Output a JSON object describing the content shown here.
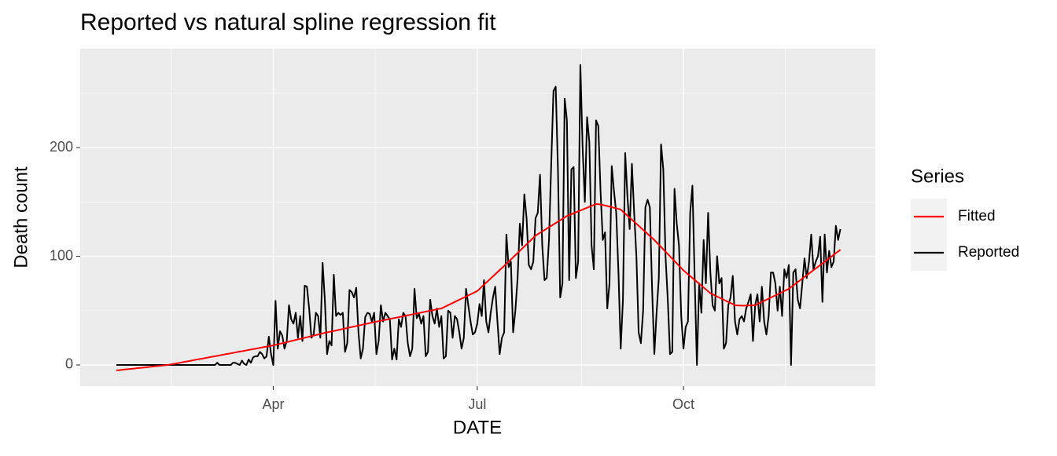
{
  "chart_data": {
    "type": "line",
    "title": "Reported vs natural spline regression fit",
    "x_label": "DATE",
    "y_label": "Death count",
    "legend_title": "Series",
    "legend_position": "right",
    "grid": true,
    "ylim": [
      -19.5,
      291
    ],
    "yticks": [
      0,
      100,
      200
    ],
    "categories": [
      null,
      null,
      null,
      null,
      null,
      null,
      null,
      null,
      null,
      null,
      null,
      null,
      null,
      null,
      null,
      null,
      null,
      null,
      null,
      null,
      null,
      null,
      null,
      null,
      null,
      null,
      null,
      null,
      null,
      null,
      null,
      null,
      null,
      null,
      null,
      null,
      null,
      null,
      null,
      null,
      null,
      null,
      null,
      null,
      null,
      null,
      null,
      null,
      null,
      null,
      null,
      null,
      null,
      null,
      null,
      null,
      null,
      null,
      null,
      null,
      null,
      null,
      null,
      null,
      null,
      null,
      null,
      null,
      null,
      null,
      "Apr",
      null,
      null,
      null,
      null,
      null,
      null,
      null,
      null,
      null,
      null,
      null,
      null,
      null,
      null,
      null,
      null,
      null,
      null,
      null,
      null,
      null,
      null,
      null,
      null,
      null,
      null,
      null,
      null,
      null,
      null,
      null,
      null,
      null,
      null,
      null,
      null,
      null,
      null,
      null,
      null,
      null,
      null,
      null,
      null,
      null,
      null,
      null,
      null,
      null,
      null,
      null,
      null,
      null,
      null,
      null,
      null,
      null,
      null,
      null,
      null,
      null,
      null,
      null,
      null,
      null,
      null,
      null,
      null,
      null,
      null,
      null,
      null,
      null,
      null,
      null,
      null,
      null,
      null,
      null,
      null,
      null,
      null,
      null,
      null,
      null,
      null,
      null,
      null,
      null,
      null,
      "Jul",
      null,
      null,
      null,
      null,
      null,
      null,
      null,
      null,
      null,
      null,
      null,
      null,
      null,
      null,
      null,
      null,
      null,
      null,
      null,
      null,
      null,
      null,
      null,
      null,
      null,
      null,
      null,
      null,
      null,
      null,
      null,
      null,
      null,
      null,
      null,
      null,
      null,
      null,
      null,
      null,
      null,
      null,
      null,
      null,
      null,
      null,
      null,
      null,
      null,
      null,
      null,
      null,
      null,
      null,
      null,
      null,
      null,
      null,
      null,
      null,
      null,
      null,
      null,
      null,
      null,
      null,
      null,
      null,
      null,
      null,
      null,
      null,
      null,
      null,
      null,
      null,
      null,
      null,
      null,
      null,
      null,
      null,
      null,
      null,
      null,
      null,
      null,
      null,
      null,
      null,
      null,
      "Oct",
      null,
      null,
      null,
      null,
      null,
      null,
      null,
      null,
      null,
      null,
      null,
      null,
      null,
      null,
      null,
      null,
      null,
      null,
      null,
      null,
      null,
      null,
      null,
      null,
      null,
      null,
      null,
      null,
      null,
      null,
      null,
      null,
      null,
      null,
      null,
      null,
      null,
      null,
      null,
      null,
      null,
      null,
      null,
      null,
      null,
      null,
      null,
      null,
      null,
      null,
      null,
      null,
      null,
      null,
      null,
      null,
      null,
      null,
      null,
      null,
      null,
      null,
      null,
      null,
      null,
      null,
      null,
      null,
      null,
      null
    ],
    "series": [
      {
        "name": "Fitted",
        "color": "#ff0000",
        "values": [
          -5,
          -4.8,
          -4.6,
          -4.3,
          -4.1,
          -3.9,
          -3.7,
          -3.5,
          -3.3,
          -3,
          -2.8,
          -2.6,
          -2.4,
          -2.2,
          -2,
          -1.7,
          -1.5,
          -1.3,
          -1.1,
          -0.9,
          -0.7,
          -0.4,
          -0.2,
          0,
          0.4,
          0.8,
          1.1,
          1.5,
          1.9,
          2.3,
          2.7,
          3.1,
          3.4,
          3.8,
          4.2,
          4.6,
          5,
          5.4,
          5.7,
          6.1,
          6.5,
          6.9,
          7.3,
          7.7,
          8,
          8.4,
          8.8,
          9.2,
          9.6,
          10,
          10.3,
          10.7,
          11.1,
          11.5,
          11.9,
          12.3,
          12.6,
          13,
          13.4,
          13.8,
          14.2,
          14.6,
          14.9,
          15.3,
          15.7,
          16.1,
          16.5,
          16.9,
          17.2,
          17.6,
          18,
          18.5,
          19,
          19.5,
          20,
          20.5,
          21,
          21.5,
          22,
          22.5,
          23,
          23.5,
          24,
          24.5,
          25,
          25.5,
          26,
          26.5,
          27,
          27.5,
          28,
          28.5,
          29,
          29.5,
          29.9,
          30.4,
          30.8,
          31.3,
          31.7,
          32.2,
          32.6,
          33.1,
          33.5,
          34,
          34.5,
          34.9,
          35.4,
          35.8,
          36.3,
          36.7,
          37.2,
          37.6,
          38.1,
          38.5,
          39,
          39.4,
          39.8,
          40.3,
          40.7,
          41.1,
          41.5,
          41.9,
          42.4,
          42.8,
          43.2,
          43.6,
          44,
          44.4,
          44.9,
          45.3,
          45.7,
          46.1,
          46.5,
          47,
          47.4,
          47.8,
          48.2,
          48.6,
          49.1,
          49.5,
          49.9,
          50.3,
          50.7,
          51.2,
          51.6,
          52,
          53,
          54,
          55,
          56,
          57,
          58,
          59,
          60,
          61,
          62,
          63,
          64,
          65,
          66,
          67,
          68,
          69.9,
          71.9,
          73.8,
          75.7,
          77.6,
          79.6,
          81.5,
          83.4,
          85.4,
          87.3,
          89.2,
          91.1,
          93.1,
          95,
          97,
          99,
          101,
          103,
          105,
          107,
          109,
          111,
          113,
          115,
          117,
          119,
          120.3,
          121.6,
          122.9,
          124.1,
          125.4,
          126.7,
          128,
          129.3,
          130.6,
          131.9,
          133.1,
          134.4,
          135.7,
          137,
          137.8,
          138.7,
          139.5,
          140.4,
          141.2,
          142.1,
          142.9,
          143.8,
          144.6,
          145.5,
          146.3,
          147.2,
          148,
          147.9,
          147.6,
          147.2,
          146.7,
          146.2,
          145.7,
          145.2,
          144.6,
          144.1,
          143.6,
          143,
          141.1,
          139.3,
          137.4,
          135.5,
          133.7,
          131.8,
          129.9,
          128.1,
          126.2,
          124.3,
          122.5,
          120.6,
          118.7,
          116.9,
          115,
          112.8,
          110.7,
          108.5,
          106.4,
          104.2,
          102.1,
          99.9,
          97.8,
          95.6,
          93.5,
          91.3,
          89.2,
          87,
          85.3,
          83.5,
          81.8,
          80,
          78.3,
          76.5,
          74.8,
          73,
          71.3,
          69.5,
          67.8,
          66,
          65,
          64,
          63,
          62,
          61,
          60,
          59,
          58,
          57,
          56,
          55,
          54.8,
          54.7,
          54.6,
          54.6,
          54.6,
          54.7,
          54.8,
          54.9,
          55,
          56,
          57,
          58,
          59,
          60,
          61,
          62,
          63,
          64,
          65,
          66,
          67,
          68,
          69,
          70,
          71.6,
          73.1,
          74.7,
          76.3,
          77.8,
          79.4,
          81,
          82.5,
          84.1,
          85.7,
          87.2,
          88.8,
          90.3,
          91.9,
          93.5,
          95,
          96.6,
          98.2,
          99.7,
          101.3,
          102.9,
          104.4,
          106
        ]
      },
      {
        "name": "Reported",
        "color": "#000000",
        "values": [
          0,
          0,
          0,
          0,
          0,
          0,
          0,
          0,
          0,
          0,
          0,
          0,
          0,
          0,
          0,
          0,
          0,
          0,
          0,
          0,
          0,
          0,
          0,
          0,
          0,
          0,
          0,
          0,
          0,
          0,
          0,
          0,
          0,
          0,
          0,
          0,
          0,
          0,
          0,
          0,
          0,
          0,
          0,
          0,
          0,
          2,
          0,
          0,
          0,
          0,
          0,
          0,
          2,
          2,
          1,
          0,
          4,
          1,
          0,
          5,
          2,
          7,
          8,
          8,
          12,
          10,
          6,
          8,
          26,
          10,
          0,
          59,
          15,
          31,
          27,
          15,
          22,
          55,
          42,
          38,
          48,
          25,
          45,
          22,
          73,
          72,
          52,
          25,
          28,
          48,
          45,
          25,
          94,
          60,
          10,
          22,
          18,
          83,
          45,
          48,
          46,
          48,
          12,
          20,
          69,
          67,
          62,
          71,
          30,
          6,
          15,
          44,
          48,
          47,
          40,
          48,
          10,
          22,
          55,
          40,
          48,
          45,
          42,
          5,
          15,
          5,
          42,
          35,
          48,
          45,
          20,
          8,
          15,
          70,
          43,
          47,
          38,
          45,
          8,
          12,
          60,
          45,
          38,
          52,
          35,
          45,
          6,
          8,
          50,
          48,
          25,
          45,
          42,
          30,
          15,
          25,
          70,
          55,
          40,
          28,
          30,
          38,
          56,
          45,
          78,
          40,
          30,
          48,
          62,
          72,
          40,
          10,
          25,
          30,
          120,
          90,
          95,
          30,
          50,
          80,
          130,
          110,
          157,
          135,
          92,
          88,
          95,
          135,
          140,
          175,
          110,
          78,
          80,
          115,
          185,
          252,
          256,
          180,
          62,
          75,
          245,
          225,
          78,
          180,
          182,
          80,
          95,
          276,
          200,
          150,
          228,
          205,
          110,
          88,
          225,
          220,
          160,
          115,
          122,
          52,
          75,
          183,
          160,
          140,
          85,
          15,
          60,
          195,
          155,
          125,
          185,
          140,
          100,
          30,
          20,
          50,
          145,
          152,
          145,
          70,
          10,
          48,
          80,
          203,
          180,
          100,
          60,
          10,
          12,
          162,
          130,
          110,
          45,
          15,
          35,
          40,
          140,
          165,
          80,
          0,
          75,
          48,
          115,
          75,
          140,
          85,
          55,
          50,
          100,
          75,
          80,
          15,
          20,
          55,
          62,
          82,
          40,
          28,
          42,
          45,
          40,
          52,
          58,
          65,
          22,
          55,
          65,
          40,
          72,
          40,
          28,
          45,
          85,
          85,
          75,
          50,
          72,
          45,
          88,
          80,
          92,
          0,
          85,
          88,
          60,
          52,
          75,
          98,
          80,
          95,
          120,
          88,
          95,
          100,
          118,
          58,
          120,
          85,
          105,
          90,
          95,
          128,
          115,
          125
        ]
      }
    ]
  }
}
